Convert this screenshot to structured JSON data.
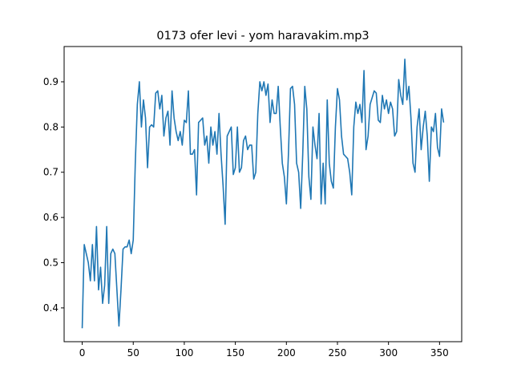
{
  "chart_data": {
    "type": "line",
    "title": "0173 ofer levi - yom haravakim.mp3",
    "x": [
      0,
      2,
      4,
      6,
      8,
      10,
      12,
      14,
      16,
      18,
      20,
      22,
      24,
      26,
      28,
      30,
      32,
      34,
      36,
      38,
      40,
      42,
      44,
      46,
      48,
      50,
      52,
      54,
      56,
      58,
      60,
      62,
      64,
      66,
      68,
      70,
      72,
      74,
      76,
      78,
      80,
      82,
      84,
      86,
      88,
      90,
      92,
      94,
      96,
      98,
      100,
      102,
      104,
      106,
      108,
      110,
      112,
      114,
      116,
      118,
      120,
      122,
      124,
      126,
      128,
      130,
      132,
      134,
      136,
      138,
      140,
      142,
      144,
      146,
      148,
      150,
      152,
      154,
      156,
      158,
      160,
      162,
      164,
      166,
      168,
      170,
      172,
      174,
      176,
      178,
      180,
      182,
      184,
      186,
      188,
      190,
      192,
      194,
      196,
      198,
      200,
      202,
      204,
      206,
      208,
      210,
      212,
      214,
      216,
      218,
      220,
      222,
      224,
      226,
      228,
      230,
      232,
      234,
      236,
      238,
      240,
      242,
      244,
      246,
      248,
      250,
      252,
      254,
      256,
      258,
      260,
      262,
      264,
      266,
      268,
      270,
      272,
      274,
      276,
      278,
      280,
      282,
      284,
      286,
      288,
      290,
      292,
      294,
      296,
      298,
      300,
      302,
      304,
      306,
      308,
      310,
      312,
      314,
      316,
      318,
      320,
      322,
      324,
      326,
      328,
      330,
      332,
      334,
      336,
      338,
      340,
      342,
      344,
      346,
      348,
      350,
      352,
      354
    ],
    "series": [
      {
        "color": "#1f77b4",
        "values": [
          0.355,
          0.54,
          0.52,
          0.5,
          0.46,
          0.54,
          0.46,
          0.58,
          0.44,
          0.49,
          0.41,
          0.45,
          0.58,
          0.41,
          0.52,
          0.53,
          0.52,
          0.44,
          0.36,
          0.44,
          0.53,
          0.535,
          0.535,
          0.55,
          0.52,
          0.55,
          0.72,
          0.85,
          0.9,
          0.8,
          0.86,
          0.82,
          0.71,
          0.8,
          0.805,
          0.8,
          0.875,
          0.88,
          0.84,
          0.87,
          0.78,
          0.82,
          0.835,
          0.76,
          0.88,
          0.82,
          0.79,
          0.77,
          0.79,
          0.76,
          0.815,
          0.81,
          0.88,
          0.74,
          0.74,
          0.75,
          0.65,
          0.81,
          0.815,
          0.82,
          0.76,
          0.78,
          0.72,
          0.8,
          0.76,
          0.79,
          0.74,
          0.83,
          0.74,
          0.67,
          0.585,
          0.78,
          0.79,
          0.8,
          0.695,
          0.71,
          0.8,
          0.7,
          0.71,
          0.77,
          0.78,
          0.75,
          0.76,
          0.76,
          0.685,
          0.7,
          0.83,
          0.9,
          0.88,
          0.9,
          0.87,
          0.895,
          0.81,
          0.86,
          0.83,
          0.83,
          0.89,
          0.8,
          0.72,
          0.69,
          0.63,
          0.74,
          0.885,
          0.89,
          0.85,
          0.72,
          0.7,
          0.62,
          0.74,
          0.89,
          0.84,
          0.69,
          0.64,
          0.8,
          0.76,
          0.73,
          0.83,
          0.63,
          0.72,
          0.63,
          0.86,
          0.72,
          0.68,
          0.665,
          0.8,
          0.885,
          0.86,
          0.78,
          0.74,
          0.735,
          0.73,
          0.7,
          0.65,
          0.8,
          0.855,
          0.83,
          0.85,
          0.81,
          0.925,
          0.75,
          0.78,
          0.85,
          0.865,
          0.88,
          0.875,
          0.815,
          0.81,
          0.87,
          0.84,
          0.86,
          0.83,
          0.855,
          0.84,
          0.78,
          0.79,
          0.905,
          0.87,
          0.85,
          0.95,
          0.86,
          0.89,
          0.82,
          0.72,
          0.7,
          0.8,
          0.84,
          0.75,
          0.8,
          0.835,
          0.78,
          0.68,
          0.8,
          0.79,
          0.83,
          0.755,
          0.735,
          0.84,
          0.81
        ]
      }
    ],
    "xlim": [
      -17.7,
      371.7
    ],
    "ylim": [
      0.3253,
      0.978
    ],
    "xticks": [
      0,
      50,
      100,
      150,
      200,
      250,
      300,
      350
    ],
    "yticks": [
      0.4,
      0.5,
      0.6,
      0.7,
      0.8,
      0.9
    ]
  }
}
